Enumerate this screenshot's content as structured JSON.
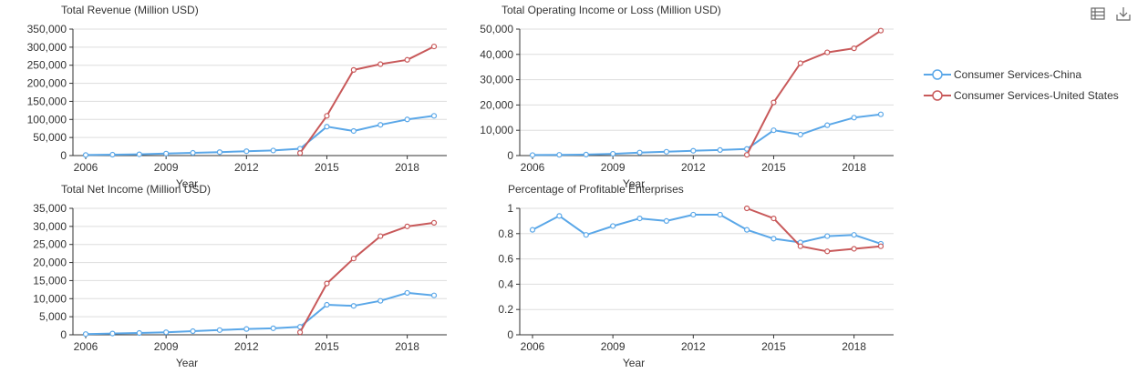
{
  "colors": {
    "china": "#5AA7E8",
    "us": "#C8595A",
    "axis": "#333333",
    "grid": "#DDDDDD",
    "text": "#333333"
  },
  "toolbar": {
    "data_view_icon": "table-icon",
    "save_icon": "download-icon"
  },
  "legend": [
    {
      "label": "Consumer Services-China",
      "color": "#5AA7E8"
    },
    {
      "label": "Consumer Services-United States",
      "color": "#C8595A"
    }
  ],
  "chart_data": [
    {
      "type": "line",
      "title": "Total Revenue (Million USD)",
      "xlabel": "Year",
      "ylabel": "",
      "x": [
        2006,
        2007,
        2008,
        2009,
        2010,
        2011,
        2012,
        2013,
        2014,
        2015,
        2016,
        2017,
        2018,
        2019
      ],
      "xticks": [
        2006,
        2009,
        2012,
        2015,
        2018
      ],
      "yticks": [
        0,
        50000,
        100000,
        150000,
        200000,
        250000,
        300000,
        350000
      ],
      "ytick_labels": [
        "0",
        "50,000",
        "100,000",
        "150,000",
        "200,000",
        "250,000",
        "300,000",
        "350,000"
      ],
      "ylim": [
        0,
        350000
      ],
      "series": [
        {
          "name": "Consumer Services-China",
          "color": "#5AA7E8",
          "values": [
            1500,
            2500,
            3500,
            5500,
            7500,
            9500,
            12000,
            14000,
            19000,
            80000,
            68000,
            85000,
            100000,
            110000
          ]
        },
        {
          "name": "Consumer Services-United States",
          "color": "#C8595A",
          "values": [
            null,
            null,
            null,
            null,
            null,
            null,
            null,
            null,
            7000,
            110000,
            237000,
            253000,
            265000,
            302000
          ]
        }
      ]
    },
    {
      "type": "line",
      "title": "Total Operating Income or Loss (Million USD)",
      "xlabel": "Year",
      "ylabel": "",
      "x": [
        2006,
        2007,
        2008,
        2009,
        2010,
        2011,
        2012,
        2013,
        2014,
        2015,
        2016,
        2017,
        2018,
        2019
      ],
      "xticks": [
        2006,
        2009,
        2012,
        2015,
        2018
      ],
      "yticks": [
        0,
        10000,
        20000,
        30000,
        40000,
        50000
      ],
      "ytick_labels": [
        "0",
        "10,000",
        "20,000",
        "30,000",
        "40,000",
        "50,000"
      ],
      "ylim": [
        0,
        50000
      ],
      "series": [
        {
          "name": "Consumer Services-China",
          "color": "#5AA7E8",
          "values": [
            200,
            300,
            400,
            700,
            1200,
            1500,
            1900,
            2200,
            2600,
            10000,
            8300,
            12000,
            15000,
            16300
          ]
        },
        {
          "name": "Consumer Services-United States",
          "color": "#C8595A",
          "values": [
            null,
            null,
            null,
            null,
            null,
            null,
            null,
            null,
            300,
            21000,
            36500,
            40800,
            42400,
            49400
          ]
        }
      ]
    },
    {
      "type": "line",
      "title": "Total Net Income (Million USD)",
      "xlabel": "Year",
      "ylabel": "",
      "x": [
        2006,
        2007,
        2008,
        2009,
        2010,
        2011,
        2012,
        2013,
        2014,
        2015,
        2016,
        2017,
        2018,
        2019
      ],
      "xticks": [
        2006,
        2009,
        2012,
        2015,
        2018
      ],
      "yticks": [
        0,
        5000,
        10000,
        15000,
        20000,
        25000,
        30000,
        35000
      ],
      "ytick_labels": [
        "0",
        "5,000",
        "10,000",
        "15,000",
        "20,000",
        "25,000",
        "30,000",
        "35,000"
      ],
      "ylim": [
        0,
        35000
      ],
      "series": [
        {
          "name": "Consumer Services-China",
          "color": "#5AA7E8",
          "values": [
            200,
            350,
            500,
            700,
            1000,
            1300,
            1600,
            1800,
            2200,
            8300,
            8000,
            9400,
            11600,
            10900
          ]
        },
        {
          "name": "Consumer Services-United States",
          "color": "#C8595A",
          "values": [
            null,
            null,
            null,
            null,
            null,
            null,
            null,
            null,
            700,
            14200,
            21100,
            27300,
            30000,
            31000
          ]
        }
      ]
    },
    {
      "type": "line",
      "title": "Percentage of Profitable Enterprises",
      "xlabel": "Year",
      "ylabel": "",
      "x": [
        2006,
        2007,
        2008,
        2009,
        2010,
        2011,
        2012,
        2013,
        2014,
        2015,
        2016,
        2017,
        2018,
        2019
      ],
      "xticks": [
        2006,
        2009,
        2012,
        2015,
        2018
      ],
      "yticks": [
        0,
        0.2,
        0.4,
        0.6,
        0.8,
        1
      ],
      "ytick_labels": [
        "0",
        "0.2",
        "0.4",
        "0.6",
        "0.8",
        "1"
      ],
      "ylim": [
        0,
        1
      ],
      "series": [
        {
          "name": "Consumer Services-China",
          "color": "#5AA7E8",
          "values": [
            0.83,
            0.94,
            0.79,
            0.86,
            0.92,
            0.9,
            0.95,
            0.95,
            0.83,
            0.76,
            0.73,
            0.78,
            0.79,
            0.72
          ]
        },
        {
          "name": "Consumer Services-United States",
          "color": "#C8595A",
          "values": [
            null,
            null,
            null,
            null,
            null,
            null,
            null,
            null,
            1.0,
            0.92,
            0.7,
            0.66,
            0.68,
            0.7
          ]
        }
      ]
    }
  ]
}
